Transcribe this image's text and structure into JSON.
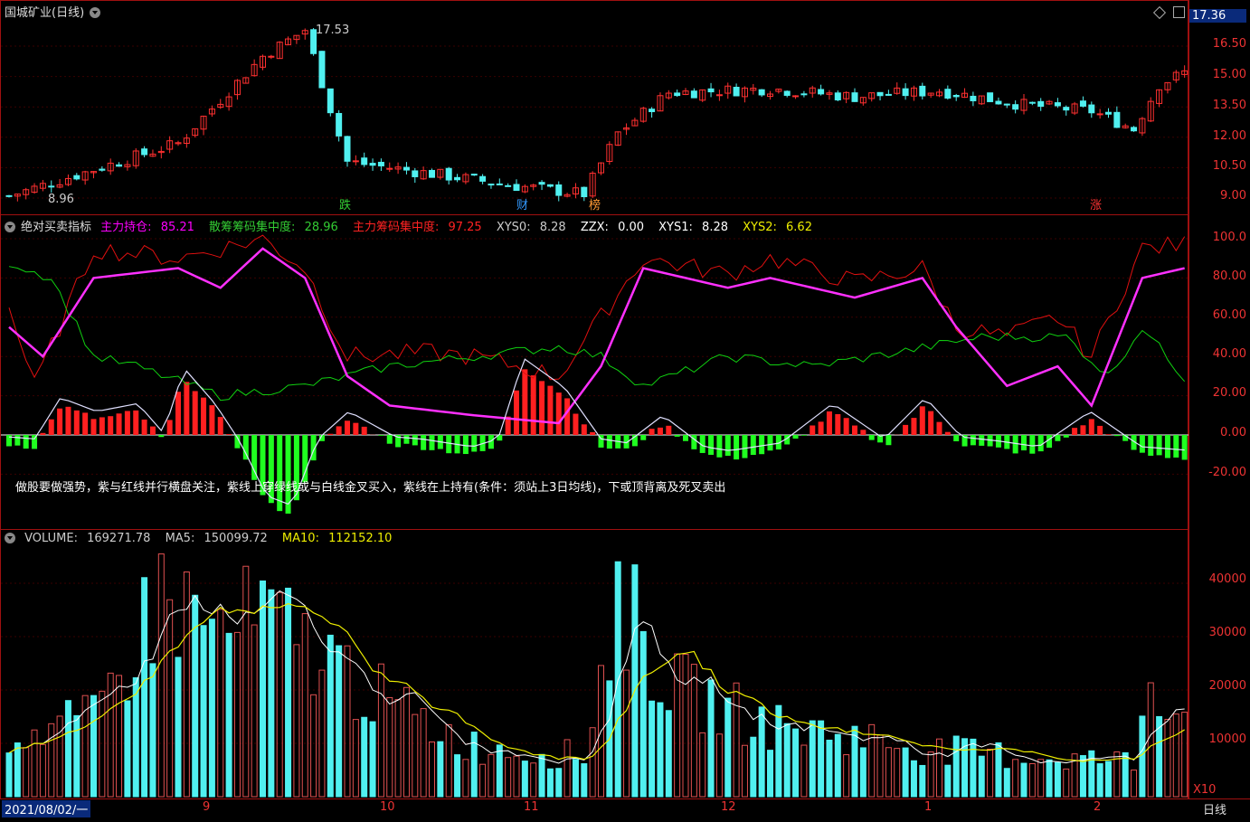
{
  "stock": {
    "title": "国城矿业(日线)",
    "current_price": "17.36",
    "high_label": "17.53",
    "low_label": "8.96",
    "price_axis": [
      "16.50",
      "15.00",
      "13.50",
      "12.00",
      "10.50",
      "9.00"
    ],
    "signals": [
      {
        "label": "跌",
        "color": "#3c3"
      },
      {
        "label": "财",
        "color": "#39f"
      },
      {
        "label": "榜",
        "color": "#f93"
      },
      {
        "label": "涨",
        "color": "#f33"
      }
    ]
  },
  "indicator": {
    "name": "绝对买卖指标",
    "fields": [
      {
        "label": "主力持仓:",
        "value": "85.21",
        "color": "#f0f"
      },
      {
        "label": "散筹筹码集中度:",
        "value": "28.96",
        "color": "#3c3"
      },
      {
        "label": "主力筹码集中度:",
        "value": "97.25",
        "color": "#f22"
      },
      {
        "label": "XYS0:",
        "value": "8.28",
        "color": "#ccc"
      },
      {
        "label": "ZZX:",
        "value": "0.00",
        "color": "#fff"
      },
      {
        "label": "XYS1:",
        "value": "8.28",
        "color": "#fff"
      },
      {
        "label": "XYS2:",
        "value": "6.62",
        "color": "#ee0"
      }
    ],
    "axis": [
      "100.0",
      "80.00",
      "60.00",
      "40.00",
      "20.00",
      "0.00",
      "-20.00"
    ],
    "note": "做股要做强势，紫与红线并行横盘关注，紫线上穿绿线或与白线金叉买入，紫线在上持有(条件：须站上3日均线)，下或顶背离及死叉卖出"
  },
  "volume": {
    "fields": [
      {
        "label": "VOLUME:",
        "value": "169271.78",
        "color": "#ccc"
      },
      {
        "label": "MA5:",
        "value": "150099.72",
        "color": "#ccc"
      },
      {
        "label": "MA10:",
        "value": "112152.10",
        "color": "#ee0"
      }
    ],
    "axis": [
      "40000",
      "30000",
      "20000",
      "10000"
    ],
    "multiplier": "X10"
  },
  "timeline": {
    "start_date": "2021/08/02/一",
    "months": [
      "9",
      "10",
      "11",
      "12",
      "1",
      "2"
    ],
    "period": "日线"
  },
  "colors": {
    "up": "#ff3030",
    "down": "#50f0f0",
    "frame": "#a01010"
  }
}
